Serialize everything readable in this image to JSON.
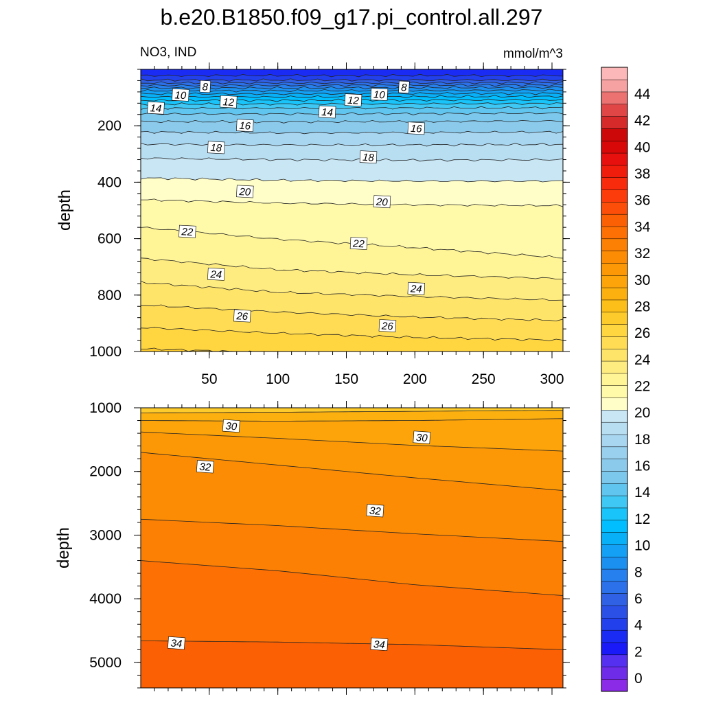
{
  "title": "b.e20.B1850.f09_g17.pi_control.all.297",
  "chart_data": {
    "type": "contour",
    "variable": "NO3",
    "region": "IND",
    "units": "mmol/m^3",
    "x": {
      "range": [
        0,
        308
      ],
      "ticks": [
        50,
        100,
        150,
        200,
        250,
        300
      ]
    },
    "panels": [
      {
        "name": "upper",
        "ylabel": "depth",
        "y_range": [
          0,
          1000
        ],
        "y_reversed": true,
        "y_ticks": [
          200,
          400,
          600,
          800,
          1000
        ],
        "contour_levels": [
          4,
          5,
          6,
          7,
          8,
          9,
          10,
          11,
          12,
          13,
          14,
          15,
          16,
          17,
          18,
          19,
          20,
          21,
          22,
          23,
          24,
          25,
          26,
          27
        ],
        "boundary_depths": {
          "at_x": [
            0,
            100,
            200,
            308
          ],
          "4": [
            22,
            22,
            22,
            22
          ],
          "5": [
            38,
            38,
            38,
            38
          ],
          "6": [
            48,
            48,
            48,
            47
          ],
          "7": [
            57,
            57,
            56,
            56
          ],
          "8": [
            66,
            66,
            65,
            64
          ],
          "9": [
            76,
            76,
            75,
            74
          ],
          "10": [
            87,
            87,
            86,
            85
          ],
          "11": [
            98,
            98,
            97,
            96
          ],
          "12": [
            110,
            110,
            109,
            108
          ],
          "13": [
            123,
            123,
            122,
            121
          ],
          "14": [
            138,
            138,
            137,
            136
          ],
          "15": [
            158,
            158,
            157,
            155
          ],
          "16": [
            185,
            186,
            185,
            183
          ],
          "17": [
            222,
            225,
            224,
            222
          ],
          "18": [
            265,
            268,
            268,
            266
          ],
          "19": [
            315,
            320,
            322,
            320
          ],
          "20": [
            385,
            393,
            396,
            396
          ],
          "21": [
            462,
            474,
            480,
            483
          ],
          "22": [
            560,
            602,
            632,
            668
          ],
          "23": [
            670,
            710,
            728,
            742
          ],
          "24": [
            755,
            790,
            805,
            818
          ],
          "25": [
            835,
            860,
            878,
            890
          ],
          "26": [
            915,
            935,
            950,
            960
          ],
          "27": [
            990,
            1005,
            1010,
            1015
          ]
        },
        "labels": [
          {
            "text": "8",
            "x": 47,
            "y": 62
          },
          {
            "text": "10",
            "x": 29,
            "y": 92
          },
          {
            "text": "12",
            "x": 64,
            "y": 116
          },
          {
            "text": "14",
            "x": 11,
            "y": 138
          },
          {
            "text": "16",
            "x": 76,
            "y": 200
          },
          {
            "text": "18",
            "x": 55,
            "y": 278
          },
          {
            "text": "20",
            "x": 76,
            "y": 434
          },
          {
            "text": "22",
            "x": 34,
            "y": 576
          },
          {
            "text": "24",
            "x": 55,
            "y": 727
          },
          {
            "text": "26",
            "x": 74,
            "y": 875
          },
          {
            "text": "8",
            "x": 192,
            "y": 64
          },
          {
            "text": "10",
            "x": 174,
            "y": 90
          },
          {
            "text": "12",
            "x": 155,
            "y": 110
          },
          {
            "text": "14",
            "x": 136,
            "y": 152
          },
          {
            "text": "16",
            "x": 201,
            "y": 210
          },
          {
            "text": "18",
            "x": 166,
            "y": 312
          },
          {
            "text": "20",
            "x": 176,
            "y": 470
          },
          {
            "text": "22",
            "x": 159,
            "y": 618
          },
          {
            "text": "24",
            "x": 201,
            "y": 778
          },
          {
            "text": "26",
            "x": 180,
            "y": 910
          }
        ]
      },
      {
        "name": "lower",
        "ylabel": "depth",
        "y_range": [
          1000,
          5400
        ],
        "y_reversed": true,
        "y_ticks": [
          1000,
          2000,
          3000,
          4000,
          5000
        ],
        "contour_levels": [
          28,
          29,
          30,
          31,
          32,
          33,
          34
        ],
        "boundary_depths": {
          "at_x": [
            0,
            100,
            200,
            308
          ],
          "28": [
            1080,
            1070,
            1055,
            1040
          ],
          "29": [
            1200,
            1210,
            1200,
            1170
          ],
          "30": [
            1380,
            1480,
            1590,
            1680
          ],
          "31": [
            1700,
            1900,
            2100,
            2300
          ],
          "32": [
            2750,
            2850,
            2980,
            3100
          ],
          "33": [
            3400,
            3560,
            3780,
            3950
          ],
          "34": [
            4660,
            4680,
            4720,
            4800
          ]
        },
        "labels": [
          {
            "text": "30",
            "x": 66,
            "y": 1290
          },
          {
            "text": "30",
            "x": 205,
            "y": 1470
          },
          {
            "text": "32",
            "x": 47,
            "y": 1930
          },
          {
            "text": "32",
            "x": 171,
            "y": 2620
          },
          {
            "text": "34",
            "x": 26,
            "y": 4700
          },
          {
            "text": "34",
            "x": 174,
            "y": 4720
          }
        ]
      }
    ],
    "colorbar": {
      "labels": [
        "0",
        "2",
        "4",
        "6",
        "8",
        "10",
        "12",
        "14",
        "16",
        "18",
        "20",
        "22",
        "24",
        "26",
        "28",
        "30",
        "32",
        "34",
        "36",
        "38",
        "40",
        "42",
        "44"
      ],
      "colors": [
        "#8B2BE8",
        "#6E2BE8",
        "#5630F0",
        "#1A1AF8",
        "#1A2CF4",
        "#2240EC",
        "#2A50E6",
        "#3060E4",
        "#2C70EA",
        "#2680EE",
        "#1C90F0",
        "#14A0F4",
        "#08B0F8",
        "#00BEFF",
        "#18C4FA",
        "#40C8F4",
        "#60C6F0",
        "#7CC8EC",
        "#8CCAEC",
        "#98D0EE",
        "#A8D6F0",
        "#B8DEF2",
        "#C8E6F4",
        "#FFFEC8",
        "#FFFAAA",
        "#FFF496",
        "#FFEC80",
        "#FFE46A",
        "#FFDC54",
        "#FFD540",
        "#FDCB2C",
        "#FCBE18",
        "#FCB010",
        "#FCA40A",
        "#FC9806",
        "#FC8C04",
        "#FC8004",
        "#FC7004",
        "#FC6004",
        "#FC4E08",
        "#FC3C0A",
        "#F82C0C",
        "#F01C0C",
        "#E8100E",
        "#D80808",
        "#CC0808",
        "#D62A2A",
        "#E04646",
        "#EC7272",
        "#F6A2A2",
        "#FCB8B8"
      ]
    }
  }
}
